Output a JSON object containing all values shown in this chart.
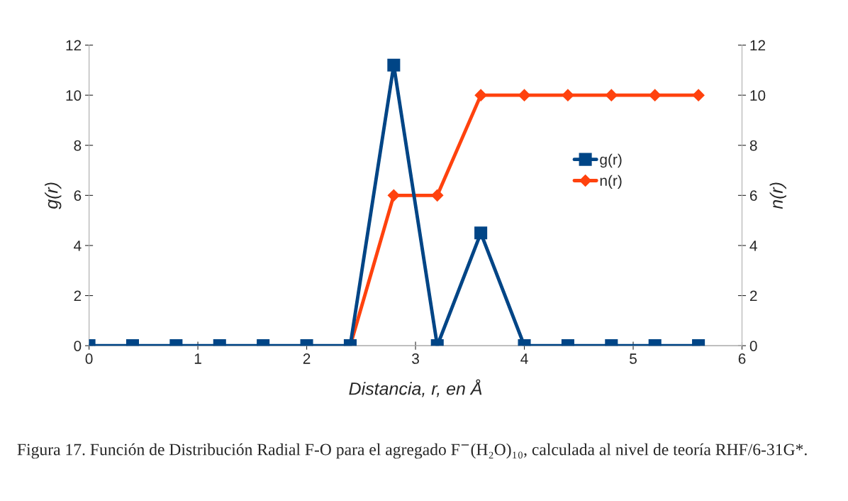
{
  "chart_data": {
    "type": "line",
    "xlabel": "Distancia, r, en Å",
    "ylabel": "g(r)",
    "y2label": "n(r)",
    "x": [
      0,
      0.4,
      0.8,
      1.2,
      1.6,
      2.0,
      2.4,
      2.8,
      3.2,
      3.6,
      4.0,
      4.4,
      4.8,
      5.2,
      5.6
    ],
    "series": [
      {
        "name": "g(r)",
        "color": "#004586",
        "marker": "square",
        "values": [
          0,
          0,
          0,
          0,
          0,
          0,
          0,
          11.2,
          0,
          4.5,
          0,
          0,
          0,
          0,
          0
        ]
      },
      {
        "name": "n(r)",
        "color": "#ff420e",
        "marker": "diamond",
        "axis": "y2",
        "values": [
          null,
          null,
          null,
          null,
          null,
          null,
          0,
          6,
          6,
          10,
          10,
          10,
          10,
          10,
          10
        ]
      }
    ],
    "xlim": [
      0,
      6
    ],
    "xticks": [
      0,
      1,
      2,
      3,
      4,
      5,
      6
    ],
    "ylim": [
      0,
      12
    ],
    "yticks": [
      0,
      2,
      4,
      6,
      8,
      10,
      12
    ],
    "y2lim": [
      0,
      12
    ],
    "y2ticks": [
      0,
      2,
      4,
      6,
      8,
      10,
      12
    ],
    "grid": false,
    "legend": "center",
    "line_style": "solid",
    "annotations": [
      "Figura 17. Función de Distribución Radial F-O para el agregado F$^{−}$(H₂O)₁₀, calculada al nivel de teoría RHF/6-31G*."
    ]
  }
}
